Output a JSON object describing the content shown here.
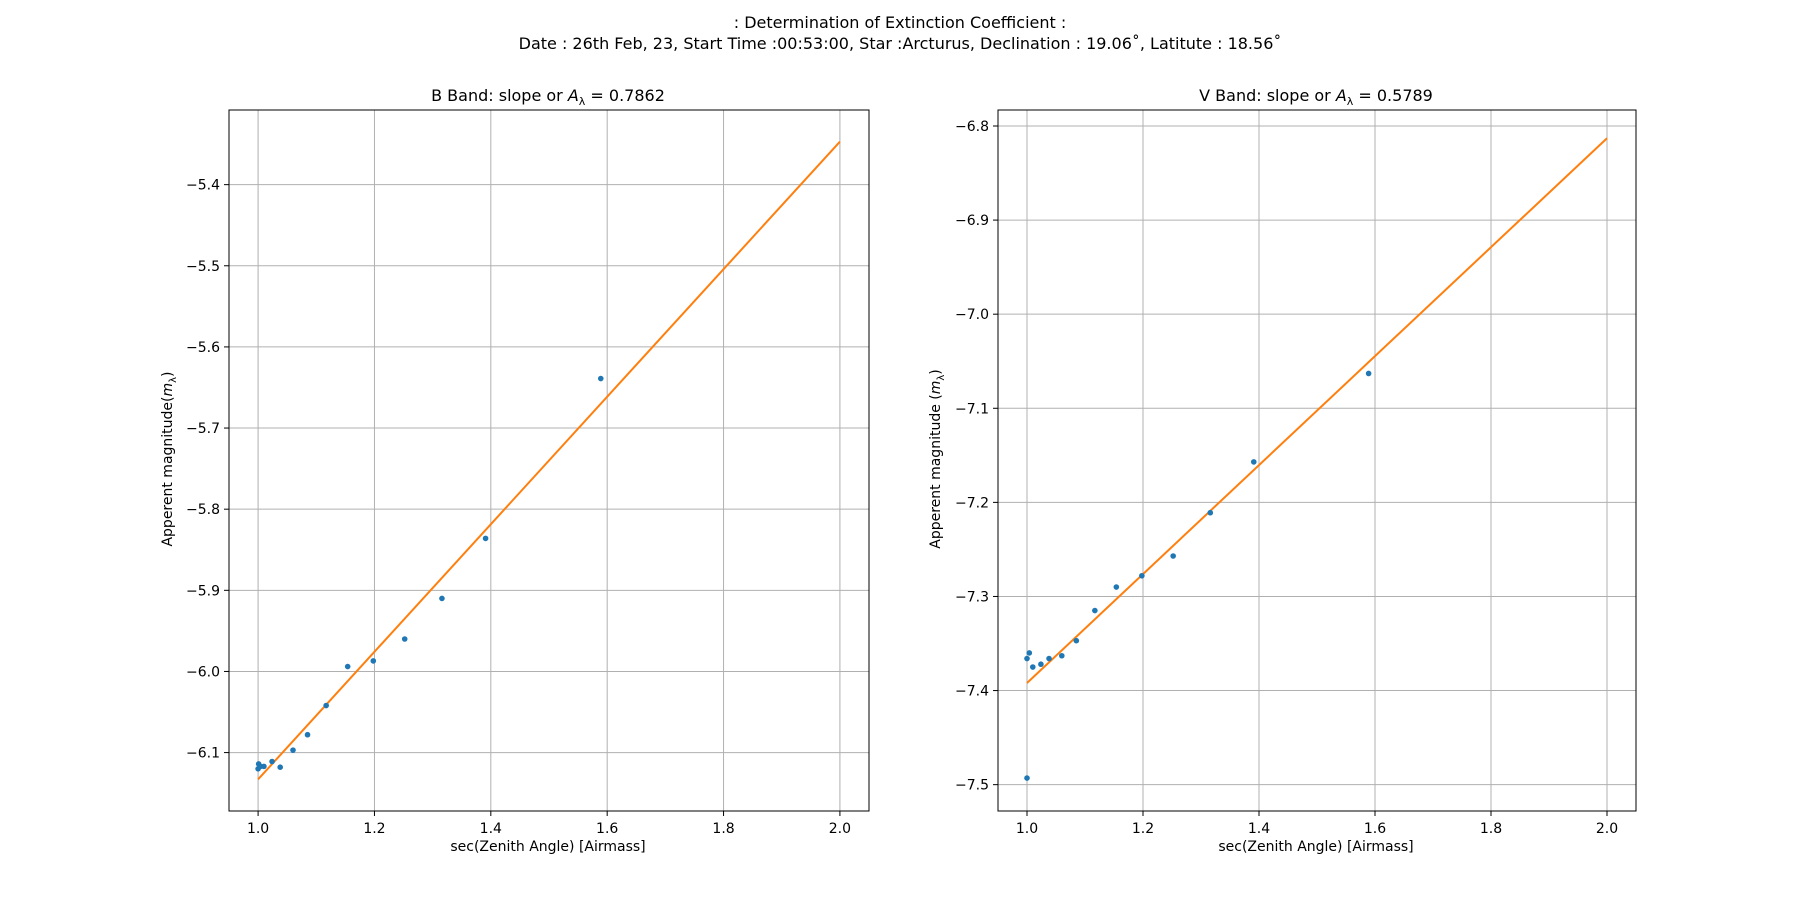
{
  "figure": {
    "suptitle_line1": ": Determination of Extinction Coefficient :",
    "suptitle_line2": "Date : 26th Feb, 23, Start Time :00:53:00, Star :Arcturus, Declination : 19.06˚, Latitute : 18.56˚"
  },
  "colors": {
    "points": "#1f77b4",
    "fit_line": "#ff7f0e",
    "grid": "#b0b0b0"
  },
  "chart_data": [
    {
      "type": "scatter",
      "title_prefix": "B Band: slope or ",
      "title_symbol": "A",
      "title_subscript": "λ",
      "title_suffix": " = 0.7862",
      "xlabel": "sec(Zenith Angle) [Airmass]",
      "ylabel_prefix": "Apperent magnitude(",
      "ylabel_symbol": "m",
      "ylabel_subscript": "λ",
      "ylabel_suffix": ")",
      "xlim": [
        0.95,
        2.05
      ],
      "ylim": [
        -6.172,
        -5.308
      ],
      "xticks": [
        1.0,
        1.2,
        1.4,
        1.6,
        1.8,
        2.0
      ],
      "xtick_labels": [
        "1.0",
        "1.2",
        "1.4",
        "1.6",
        "1.8",
        "2.0"
      ],
      "yticks": [
        -6.1,
        -6.0,
        -5.9,
        -5.8,
        -5.7,
        -5.6,
        -5.5,
        -5.4
      ],
      "ytick_labels": [
        "−6.1",
        "−6.0",
        "−5.9",
        "−5.8",
        "−5.7",
        "−5.6",
        "−5.5",
        "−5.4"
      ],
      "grid": true,
      "points": {
        "x": [
          1.0,
          1.001,
          1.004,
          1.01,
          1.024,
          1.038,
          1.06,
          1.085,
          1.117,
          1.154,
          1.198,
          1.252,
          1.316,
          1.391,
          1.589
        ],
        "y": [
          -6.12,
          -6.114,
          -6.117,
          -6.117,
          -6.111,
          -6.118,
          -6.097,
          -6.078,
          -6.042,
          -5.994,
          -5.987,
          -5.96,
          -5.91,
          -5.836,
          -5.639
        ]
      },
      "fit_line": {
        "x": [
          1.0,
          2.0
        ],
        "y": [
          -6.133,
          -5.347
        ]
      }
    },
    {
      "type": "scatter",
      "title_prefix": "V Band: slope or ",
      "title_symbol": "A",
      "title_subscript": "λ",
      "title_suffix": " = 0.5789",
      "xlabel": "sec(Zenith Angle) [Airmass]",
      "ylabel_prefix": "Apperent magnitude (",
      "ylabel_symbol": "m",
      "ylabel_subscript": "λ",
      "ylabel_suffix": ")",
      "xlim": [
        0.95,
        2.05
      ],
      "ylim": [
        -7.528,
        -6.783
      ],
      "xticks": [
        1.0,
        1.2,
        1.4,
        1.6,
        1.8,
        2.0
      ],
      "xtick_labels": [
        "1.0",
        "1.2",
        "1.4",
        "1.6",
        "1.8",
        "2.0"
      ],
      "yticks": [
        -7.5,
        -7.4,
        -7.3,
        -7.2,
        -7.1,
        -7.0,
        -6.9,
        -6.8
      ],
      "ytick_labels": [
        "−7.5",
        "−7.4",
        "−7.3",
        "−7.2",
        "−7.1",
        "−7.0",
        "−6.9",
        "−6.8"
      ],
      "grid": true,
      "points": {
        "x": [
          1.0,
          1.0,
          1.004,
          1.01,
          1.024,
          1.038,
          1.06,
          1.085,
          1.117,
          1.154,
          1.198,
          1.252,
          1.316,
          1.391,
          1.589
        ],
        "y": [
          -7.493,
          -7.366,
          -7.36,
          -7.375,
          -7.372,
          -7.366,
          -7.363,
          -7.347,
          -7.315,
          -7.29,
          -7.278,
          -7.257,
          -7.211,
          -7.157,
          -7.063
        ]
      },
      "fit_line": {
        "x": [
          1.0,
          2.0
        ],
        "y": [
          -7.392,
          -6.813
        ]
      }
    }
  ]
}
